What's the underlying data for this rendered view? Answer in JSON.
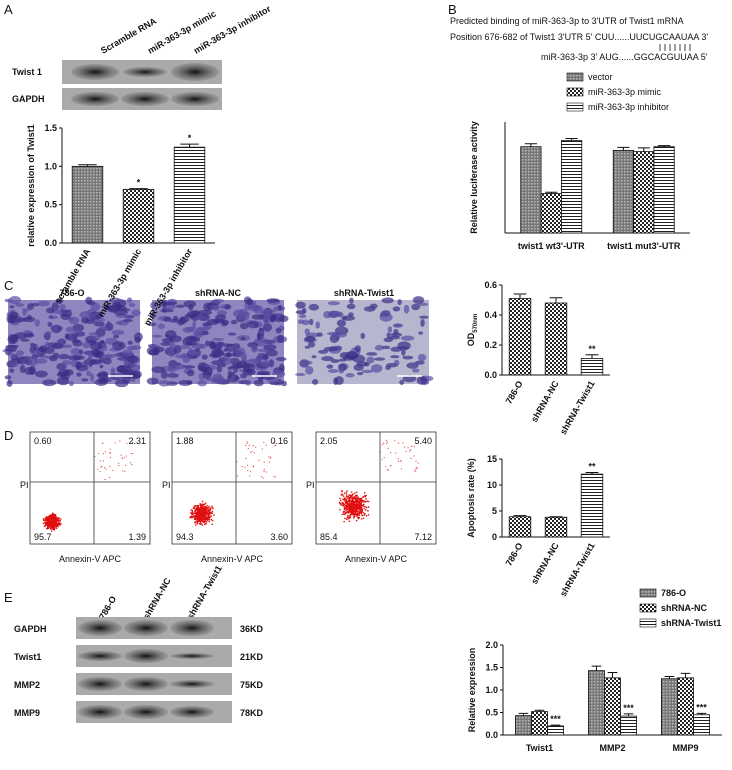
{
  "figure": {
    "panel_labels": [
      "A",
      "B",
      "C",
      "D",
      "E"
    ],
    "blot_a": {
      "lanes": [
        "Scramble RNA",
        "miR-363-3p mimic",
        "miR-363-3p inhibitor"
      ],
      "rows": [
        "Twist 1",
        "GAPDH"
      ]
    },
    "binding": {
      "title": "Predicted binding of miR-363-3p to 3'UTR of Twist1 mRNA",
      "line1": "Position 676-682 of Twist1 3'UTR  5' CUU......UUCUGCAAUAA 3'",
      "line2": "miR-363-3p   3' AUG......GGCACGUUAA   5'"
    },
    "micrographs": {
      "titles": [
        "786-O",
        "shRNA-NC",
        "shRNA-Twist1"
      ]
    },
    "flow": {
      "x_label": "Annexin-V APC",
      "y_label": "PI",
      "plots": [
        [
          "0.60",
          "2.31",
          "95.7",
          "1.39"
        ],
        [
          "1.88",
          "0.16",
          "94.3",
          "3.60"
        ],
        [
          "2.05",
          "5.40",
          "85.4",
          "7.12"
        ]
      ]
    },
    "blot_e": {
      "lanes": [
        "786-O",
        "shRNA-NC",
        "shRNA-Twist1"
      ],
      "rows": [
        "GAPDH",
        "Twist1",
        "MMP2",
        "MMP9"
      ],
      "sizes": [
        "36KD",
        "21KD",
        "75KD",
        "78KD"
      ]
    }
  },
  "chart_data": [
    {
      "type": "bar",
      "y_label": "relative expression of Twist1",
      "categories": [
        "scramble RNA",
        "miR-363-3p mimic",
        "miR-363-3p inhibitor"
      ],
      "values": [
        1.0,
        0.7,
        1.25
      ],
      "errors": [
        0.02,
        0.01,
        0.04
      ],
      "significance": [
        null,
        "*",
        "*"
      ],
      "patterns": [
        "dots",
        "checker",
        "hlines"
      ],
      "ylim": [
        0,
        1.5
      ],
      "yticks": [
        {
          "value": 0,
          "label": "0.0"
        },
        0.5,
        {
          "value": 1,
          "label": "1.0"
        },
        1.5
      ]
    },
    {
      "type": "bar",
      "y_label": "Relative luciferase activity",
      "categories": [
        "twist1 wt3'-UTR",
        "twist1 mut3'-UTR"
      ],
      "series": [
        {
          "name": "vector",
          "pattern": "dots",
          "values": [
            0.35,
            0.335
          ],
          "errors": [
            0.012,
            0.012
          ]
        },
        {
          "name": "miR-363-3p mimic",
          "pattern": "checker",
          "values": [
            0.16,
            0.33
          ],
          "errors": [
            0.005,
            0.015
          ]
        },
        {
          "name": "miR-363-3p inhibitor",
          "pattern": "hlines",
          "values": [
            0.375,
            0.35
          ],
          "errors": [
            0.008,
            0.004
          ]
        }
      ],
      "ylim": [
        0,
        0.45
      ]
    },
    {
      "type": "bar",
      "y_label": "OD",
      "y_label_sub": "570nm",
      "categories": [
        "786-O",
        "shRNA-NC",
        "shRNA-Twist1"
      ],
      "values": [
        0.51,
        0.48,
        0.11
      ],
      "errors": [
        0.03,
        0.035,
        0.025
      ],
      "significance": [
        null,
        null,
        "**"
      ],
      "patterns": [
        "checker",
        "checker",
        "hlines"
      ],
      "ylim": [
        0,
        0.6
      ],
      "yticks": [
        {
          "value": 0,
          "label": "0.0"
        },
        0.2,
        0.4,
        0.6
      ]
    },
    {
      "type": "bar",
      "y_label": "Apoptosis rate (%)",
      "categories": [
        "786-O",
        "shRNA-NC",
        "shRNA-Twist1"
      ],
      "values": [
        3.9,
        3.8,
        12.1
      ],
      "errors": [
        0.2,
        0.1,
        0.3
      ],
      "significance": [
        null,
        null,
        "**"
      ],
      "patterns": [
        "checker",
        "checker",
        "hlines"
      ],
      "ylim": [
        0,
        15
      ],
      "yticks": [
        0,
        5,
        10,
        15
      ]
    },
    {
      "type": "bar",
      "y_label": "Relative expression",
      "categories": [
        "Twist1",
        "MMP2",
        "MMP9"
      ],
      "series": [
        {
          "name": "786-O",
          "pattern": "dots",
          "values": [
            0.43,
            1.43,
            1.25
          ],
          "errors": [
            0.05,
            0.1,
            0.05
          ]
        },
        {
          "name": "shRNA-NC",
          "pattern": "checker",
          "values": [
            0.52,
            1.27,
            1.27
          ],
          "errors": [
            0.03,
            0.12,
            0.1
          ]
        },
        {
          "name": "shRNA-Twist1",
          "pattern": "hlines",
          "values": [
            0.2,
            0.42,
            0.45
          ],
          "errors": [
            0.02,
            0.05,
            0.03
          ],
          "significance": [
            "***",
            "***",
            "***"
          ]
        }
      ],
      "ylim": [
        0,
        2
      ],
      "yticks": [
        {
          "value": 0,
          "label": "0.0"
        },
        0.5,
        {
          "value": 1,
          "label": "1.0"
        },
        1.5,
        {
          "value": 2,
          "label": "2.0"
        }
      ]
    }
  ]
}
